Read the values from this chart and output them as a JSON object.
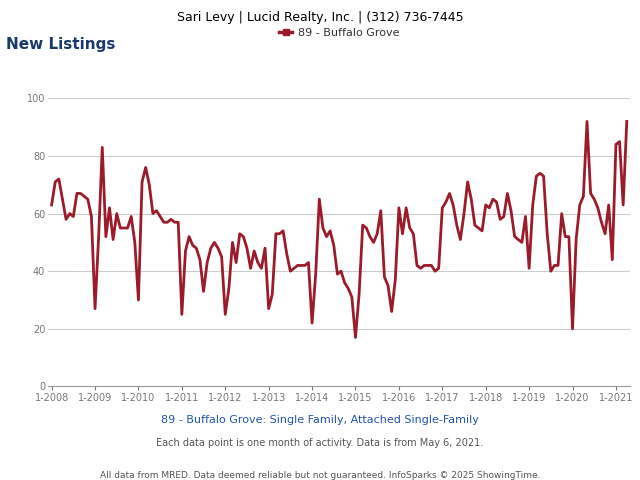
{
  "header": "Sari Levy | Lucid Realty, Inc. | (312) 736-7445",
  "title": "New Listings",
  "legend_label": "89 - Buffalo Grove",
  "subtitle": "89 - Buffalo Grove: Single Family, Attached Single-Family",
  "note1": "Each data point is one month of activity. Data is from May 6, 2021.",
  "note2": "All data from MRED. Data deemed reliable but not guaranteed. InfoSparks © 2025 ShowingTime.",
  "line_color": "#9b1b2a",
  "line_width": 2.0,
  "ylim": [
    0,
    100
  ],
  "yticks": [
    0,
    20,
    40,
    60,
    80,
    100
  ],
  "xtick_labels": [
    "1-2008",
    "1-2009",
    "1-2010",
    "1-2011",
    "1-2012",
    "1-2013",
    "1-2014",
    "1-2015",
    "1-2016",
    "1-2017",
    "1-2018",
    "1-2019",
    "1-2020",
    "1-2021"
  ],
  "header_facecolor": "#e8e8e8",
  "header_fontsize": 9,
  "title_fontsize": 11,
  "title_color": "#1a3a6b",
  "legend_fontsize": 8,
  "tick_fontsize": 7,
  "subtitle_fontsize": 8,
  "note_fontsize": 7,
  "subtitle_color": "#2255aa",
  "note_color": "#555555",
  "grid_color": "#cccccc",
  "values": [
    63,
    71,
    72,
    65,
    58,
    60,
    59,
    67,
    67,
    66,
    65,
    59,
    27,
    52,
    83,
    52,
    62,
    51,
    60,
    55,
    55,
    55,
    59,
    50,
    30,
    71,
    76,
    70,
    60,
    61,
    59,
    57,
    57,
    58,
    57,
    57,
    25,
    47,
    52,
    49,
    48,
    44,
    33,
    43,
    48,
    50,
    48,
    45,
    25,
    34,
    50,
    43,
    53,
    52,
    48,
    41,
    47,
    43,
    41,
    48,
    27,
    32,
    53,
    53,
    54,
    46,
    40,
    41,
    42,
    42,
    42,
    43,
    22,
    39,
    65,
    55,
    52,
    54,
    49,
    39,
    40,
    36,
    34,
    31,
    17,
    32,
    56,
    55,
    52,
    50,
    53,
    61,
    38,
    35,
    26,
    37,
    62,
    53,
    62,
    55,
    53,
    42,
    41,
    42,
    42,
    42,
    40,
    41,
    62,
    64,
    67,
    63,
    56,
    51,
    60,
    71,
    65,
    56,
    55,
    54,
    63,
    62,
    65,
    64,
    58,
    59,
    67,
    61,
    52,
    51,
    50,
    59,
    41,
    63,
    73,
    74,
    73,
    53,
    40,
    42,
    42,
    60,
    52,
    52,
    20,
    51,
    63,
    66,
    92,
    67,
    65,
    62,
    57,
    53,
    63,
    44,
    84,
    85,
    63,
    92
  ]
}
